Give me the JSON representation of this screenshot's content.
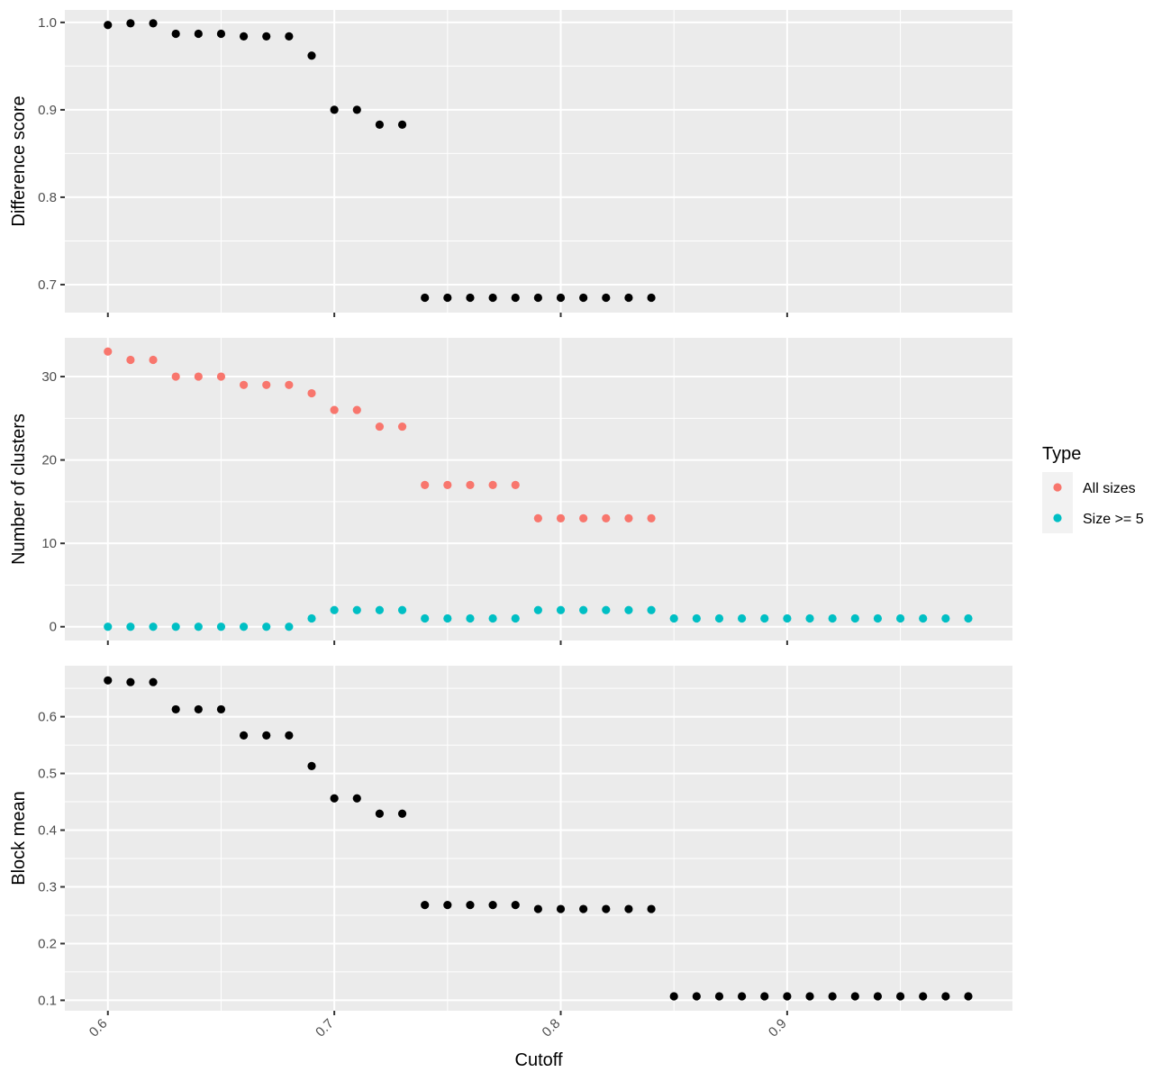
{
  "chart_data": {
    "type": "scatter",
    "xlabel": "Cutoff",
    "x_ticks": [
      0.6,
      0.7,
      0.8,
      0.9
    ],
    "x_tick_labels": [
      "0.6",
      "0.7",
      "0.8",
      "0.9"
    ],
    "xlim": [
      0.581,
      0.9995
    ],
    "grid": true,
    "legend": {
      "title": "Type",
      "position": "right",
      "entries": [
        {
          "label": "All sizes",
          "color": "#F8766D"
        },
        {
          "label": "Size >= 5",
          "color": "#00BFC4"
        }
      ]
    },
    "panels": [
      {
        "ylabel": "Difference score",
        "ylim": [
          0.668,
          1.0143
        ],
        "y_ticks": [
          0.7,
          0.8,
          0.9,
          1.0
        ],
        "y_tick_labels": [
          "0.7",
          "0.8",
          "0.9",
          "1.0"
        ],
        "series": [
          {
            "color": "#000000",
            "points": [
              [
                0.6,
                0.997
              ],
              [
                0.61,
                0.999
              ],
              [
                0.62,
                0.999
              ],
              [
                0.63,
                0.987
              ],
              [
                0.64,
                0.987
              ],
              [
                0.65,
                0.987
              ],
              [
                0.66,
                0.984
              ],
              [
                0.67,
                0.984
              ],
              [
                0.68,
                0.984
              ],
              [
                0.69,
                0.962
              ],
              [
                0.7,
                0.9
              ],
              [
                0.71,
                0.9
              ],
              [
                0.72,
                0.883
              ],
              [
                0.73,
                0.883
              ],
              [
                0.74,
                0.685
              ],
              [
                0.75,
                0.685
              ],
              [
                0.76,
                0.685
              ],
              [
                0.77,
                0.685
              ],
              [
                0.78,
                0.685
              ],
              [
                0.79,
                0.685
              ],
              [
                0.8,
                0.685
              ],
              [
                0.81,
                0.685
              ],
              [
                0.82,
                0.685
              ],
              [
                0.83,
                0.685
              ],
              [
                0.84,
                0.685
              ]
            ]
          }
        ]
      },
      {
        "ylabel": "Number of clusters",
        "ylim": [
          -1.65,
          34.65
        ],
        "y_ticks": [
          0,
          10,
          20,
          30
        ],
        "y_tick_labels": [
          "0",
          "10",
          "20",
          "30"
        ],
        "series": [
          {
            "name": "All sizes",
            "color": "#F8766D",
            "points": [
              [
                0.6,
                33
              ],
              [
                0.61,
                32
              ],
              [
                0.62,
                32
              ],
              [
                0.63,
                30
              ],
              [
                0.64,
                30
              ],
              [
                0.65,
                30
              ],
              [
                0.66,
                29
              ],
              [
                0.67,
                29
              ],
              [
                0.68,
                29
              ],
              [
                0.69,
                28
              ],
              [
                0.7,
                26
              ],
              [
                0.71,
                26
              ],
              [
                0.72,
                24
              ],
              [
                0.73,
                24
              ],
              [
                0.74,
                17
              ],
              [
                0.75,
                17
              ],
              [
                0.76,
                17
              ],
              [
                0.77,
                17
              ],
              [
                0.78,
                17
              ],
              [
                0.79,
                13
              ],
              [
                0.8,
                13
              ],
              [
                0.81,
                13
              ],
              [
                0.82,
                13
              ],
              [
                0.83,
                13
              ],
              [
                0.84,
                13
              ]
            ]
          },
          {
            "name": "Size >= 5",
            "color": "#00BFC4",
            "points": [
              [
                0.6,
                0
              ],
              [
                0.61,
                0
              ],
              [
                0.62,
                0
              ],
              [
                0.63,
                0
              ],
              [
                0.64,
                0
              ],
              [
                0.65,
                0
              ],
              [
                0.66,
                0
              ],
              [
                0.67,
                0
              ],
              [
                0.68,
                0
              ],
              [
                0.69,
                1
              ],
              [
                0.7,
                2
              ],
              [
                0.71,
                2
              ],
              [
                0.72,
                2
              ],
              [
                0.73,
                2
              ],
              [
                0.74,
                1
              ],
              [
                0.75,
                1
              ],
              [
                0.76,
                1
              ],
              [
                0.77,
                1
              ],
              [
                0.78,
                1
              ],
              [
                0.79,
                2
              ],
              [
                0.8,
                2
              ],
              [
                0.81,
                2
              ],
              [
                0.82,
                2
              ],
              [
                0.83,
                2
              ],
              [
                0.84,
                2
              ],
              [
                0.85,
                1
              ],
              [
                0.86,
                1
              ],
              [
                0.87,
                1
              ],
              [
                0.88,
                1
              ],
              [
                0.89,
                1
              ],
              [
                0.9,
                1
              ],
              [
                0.91,
                1
              ],
              [
                0.92,
                1
              ],
              [
                0.93,
                1
              ],
              [
                0.94,
                1
              ],
              [
                0.95,
                1
              ],
              [
                0.96,
                1
              ],
              [
                0.97,
                1
              ],
              [
                0.98,
                1
              ]
            ]
          }
        ]
      },
      {
        "ylabel": "Block mean",
        "ylim": [
          0.0816,
          0.6899
        ],
        "y_ticks": [
          0.1,
          0.2,
          0.3,
          0.4,
          0.5,
          0.6
        ],
        "y_tick_labels": [
          "0.1",
          "0.2",
          "0.3",
          "0.4",
          "0.5",
          "0.6"
        ],
        "series": [
          {
            "color": "#000000",
            "points": [
              [
                0.6,
                0.664
              ],
              [
                0.61,
                0.661
              ],
              [
                0.62,
                0.661
              ],
              [
                0.63,
                0.613
              ],
              [
                0.64,
                0.613
              ],
              [
                0.65,
                0.613
              ],
              [
                0.66,
                0.567
              ],
              [
                0.67,
                0.567
              ],
              [
                0.68,
                0.567
              ],
              [
                0.69,
                0.513
              ],
              [
                0.7,
                0.456
              ],
              [
                0.71,
                0.456
              ],
              [
                0.72,
                0.429
              ],
              [
                0.73,
                0.429
              ],
              [
                0.74,
                0.268
              ],
              [
                0.75,
                0.268
              ],
              [
                0.76,
                0.268
              ],
              [
                0.77,
                0.268
              ],
              [
                0.78,
                0.268
              ],
              [
                0.79,
                0.261
              ],
              [
                0.8,
                0.261
              ],
              [
                0.81,
                0.261
              ],
              [
                0.82,
                0.261
              ],
              [
                0.83,
                0.261
              ],
              [
                0.84,
                0.261
              ],
              [
                0.85,
                0.107
              ],
              [
                0.86,
                0.107
              ],
              [
                0.87,
                0.107
              ],
              [
                0.88,
                0.107
              ],
              [
                0.89,
                0.107
              ],
              [
                0.9,
                0.107
              ],
              [
                0.91,
                0.107
              ],
              [
                0.92,
                0.107
              ],
              [
                0.93,
                0.107
              ],
              [
                0.94,
                0.107
              ],
              [
                0.95,
                0.107
              ],
              [
                0.96,
                0.107
              ],
              [
                0.97,
                0.107
              ],
              [
                0.98,
                0.107
              ]
            ]
          }
        ]
      }
    ]
  }
}
